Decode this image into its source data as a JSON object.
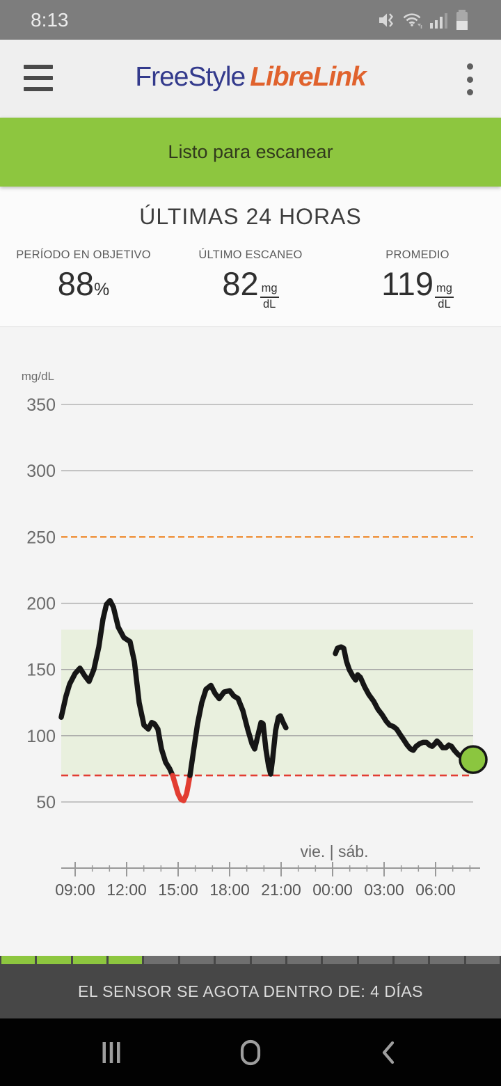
{
  "status_bar": {
    "time": "8:13",
    "icons": [
      "mute-vibrate-icon",
      "wifi-icon",
      "signal-icon",
      "battery-icon"
    ]
  },
  "header": {
    "logo_part1": "FreeStyle",
    "logo_part2": "LibreLink",
    "logo_color1": "#333a8c",
    "logo_color2": "#e0622d"
  },
  "scan_banner": {
    "label": "Listo para escanear",
    "bg_color": "#8dc63f"
  },
  "summary": {
    "title": "ÚLTIMAS 24 HORAS",
    "stats": [
      {
        "label": "PERÍODO EN OBJETIVO",
        "value": "88",
        "unit": "%"
      },
      {
        "label": "ÚLTIMO ESCANEO",
        "value": "82",
        "unit_top": "mg",
        "unit_bottom": "dL"
      },
      {
        "label": "PROMEDIO",
        "value": "119",
        "unit_top": "mg",
        "unit_bottom": "dL"
      }
    ]
  },
  "chart_data": {
    "type": "line",
    "ylabel": "mg/dL",
    "yticks": [
      350,
      300,
      250,
      200,
      150,
      100,
      50
    ],
    "ylim": [
      35,
      390
    ],
    "grid": true,
    "target_zone": {
      "low": 70,
      "high": 180,
      "color": "#e9f0de"
    },
    "high_threshold": {
      "value": 250,
      "color": "#ee8b30",
      "style": "dashed"
    },
    "low_threshold": {
      "value": 70,
      "color": "#e23d32",
      "style": "dashed"
    },
    "x_axis": {
      "unit": "hours_from_09:00",
      "minor_tick_hours": 1,
      "ticks": [
        {
          "t": 0,
          "label": "09:00"
        },
        {
          "t": 3,
          "label": "12:00"
        },
        {
          "t": 6,
          "label": "15:00"
        },
        {
          "t": 9,
          "label": "18:00"
        },
        {
          "t": 12,
          "label": "21:00"
        },
        {
          "t": 15,
          "label": "00:00"
        },
        {
          "t": 18,
          "label": "03:00"
        },
        {
          "t": 21,
          "label": "06:00"
        }
      ]
    },
    "day_divider": {
      "t": 15.1,
      "label": "vie. | sáb."
    },
    "series": [
      {
        "name": "glucose-friday-morning",
        "color": "#161616",
        "points": [
          [
            -0.81,
            114
          ],
          [
            -0.53,
            130
          ],
          [
            -0.32,
            139
          ],
          [
            0,
            147
          ],
          [
            0.28,
            151
          ],
          [
            0.57,
            145
          ],
          [
            0.81,
            141
          ],
          [
            1.09,
            150
          ],
          [
            1.38,
            167
          ],
          [
            1.62,
            188
          ],
          [
            1.82,
            199
          ],
          [
            2.03,
            202
          ],
          [
            2.23,
            197
          ],
          [
            2.51,
            182
          ],
          [
            2.84,
            174
          ],
          [
            3.2,
            171
          ],
          [
            3.45,
            156
          ],
          [
            3.73,
            125
          ],
          [
            4.01,
            108
          ],
          [
            4.26,
            105
          ],
          [
            4.46,
            110
          ],
          [
            4.62,
            109
          ],
          [
            4.82,
            105
          ],
          [
            5.03,
            90
          ],
          [
            5.27,
            80
          ],
          [
            5.51,
            75
          ],
          [
            5.68,
            70
          ]
        ]
      },
      {
        "name": "glucose-low-excursion",
        "color": "#e23d32",
        "points": [
          [
            5.68,
            70
          ],
          [
            5.84,
            63
          ],
          [
            6.0,
            56
          ],
          [
            6.16,
            52
          ],
          [
            6.32,
            51
          ],
          [
            6.49,
            56
          ],
          [
            6.61,
            64
          ],
          [
            6.69,
            70
          ]
        ]
      },
      {
        "name": "glucose-friday-evening",
        "color": "#161616",
        "points": [
          [
            6.69,
            70
          ],
          [
            6.89,
            88
          ],
          [
            7.13,
            109
          ],
          [
            7.38,
            125
          ],
          [
            7.62,
            135
          ],
          [
            7.91,
            138
          ],
          [
            8.15,
            132
          ],
          [
            8.39,
            128
          ],
          [
            8.68,
            133
          ],
          [
            9.0,
            134
          ],
          [
            9.24,
            130
          ],
          [
            9.49,
            128
          ],
          [
            9.77,
            119
          ],
          [
            10.05,
            105
          ],
          [
            10.3,
            94
          ],
          [
            10.46,
            90
          ],
          [
            10.66,
            101
          ],
          [
            10.83,
            110
          ],
          [
            10.95,
            109
          ],
          [
            11.11,
            90
          ],
          [
            11.27,
            77
          ],
          [
            11.39,
            71
          ],
          [
            11.51,
            83
          ],
          [
            11.68,
            104
          ],
          [
            11.84,
            114
          ],
          [
            11.96,
            115
          ],
          [
            12.12,
            110
          ],
          [
            12.28,
            106
          ]
        ]
      },
      {
        "name": "glucose-saturday",
        "color": "#161616",
        "points": [
          [
            15.16,
            162
          ],
          [
            15.28,
            166
          ],
          [
            15.49,
            167
          ],
          [
            15.65,
            166
          ],
          [
            15.81,
            156
          ],
          [
            15.97,
            150
          ],
          [
            16.18,
            145
          ],
          [
            16.34,
            142
          ],
          [
            16.46,
            146
          ],
          [
            16.62,
            144
          ],
          [
            16.86,
            137
          ],
          [
            17.11,
            131
          ],
          [
            17.39,
            126
          ],
          [
            17.64,
            120
          ],
          [
            17.88,
            116
          ],
          [
            18.12,
            111
          ],
          [
            18.32,
            108
          ],
          [
            18.53,
            107
          ],
          [
            18.73,
            105
          ],
          [
            18.93,
            101
          ],
          [
            19.14,
            97
          ],
          [
            19.34,
            93
          ],
          [
            19.54,
            90
          ],
          [
            19.7,
            89
          ],
          [
            19.86,
            92
          ],
          [
            20.07,
            94
          ],
          [
            20.27,
            95
          ],
          [
            20.47,
            95
          ],
          [
            20.64,
            93
          ],
          [
            20.8,
            92
          ],
          [
            20.96,
            94
          ],
          [
            21.08,
            96
          ],
          [
            21.24,
            94
          ],
          [
            21.41,
            91
          ],
          [
            21.61,
            91
          ],
          [
            21.77,
            93
          ],
          [
            21.93,
            92
          ],
          [
            22.09,
            89
          ],
          [
            22.3,
            86
          ],
          [
            22.5,
            84
          ],
          [
            22.7,
            83
          ],
          [
            22.91,
            82
          ],
          [
            23.11,
            82
          ]
        ]
      }
    ],
    "current_point": {
      "t": 23.19,
      "value": 82,
      "color": "#8bc63f"
    }
  },
  "sensor_banner": {
    "message": "EL SENSOR SE AGOTA DENTRO DE: 4 DÍAS",
    "segments_total": 14,
    "segments_active": 4,
    "active_color": "#8dc63f",
    "inactive_color": "#6f6f6f"
  },
  "nav_bar": {
    "icons": [
      "recents-icon",
      "home-icon",
      "back-icon"
    ]
  }
}
